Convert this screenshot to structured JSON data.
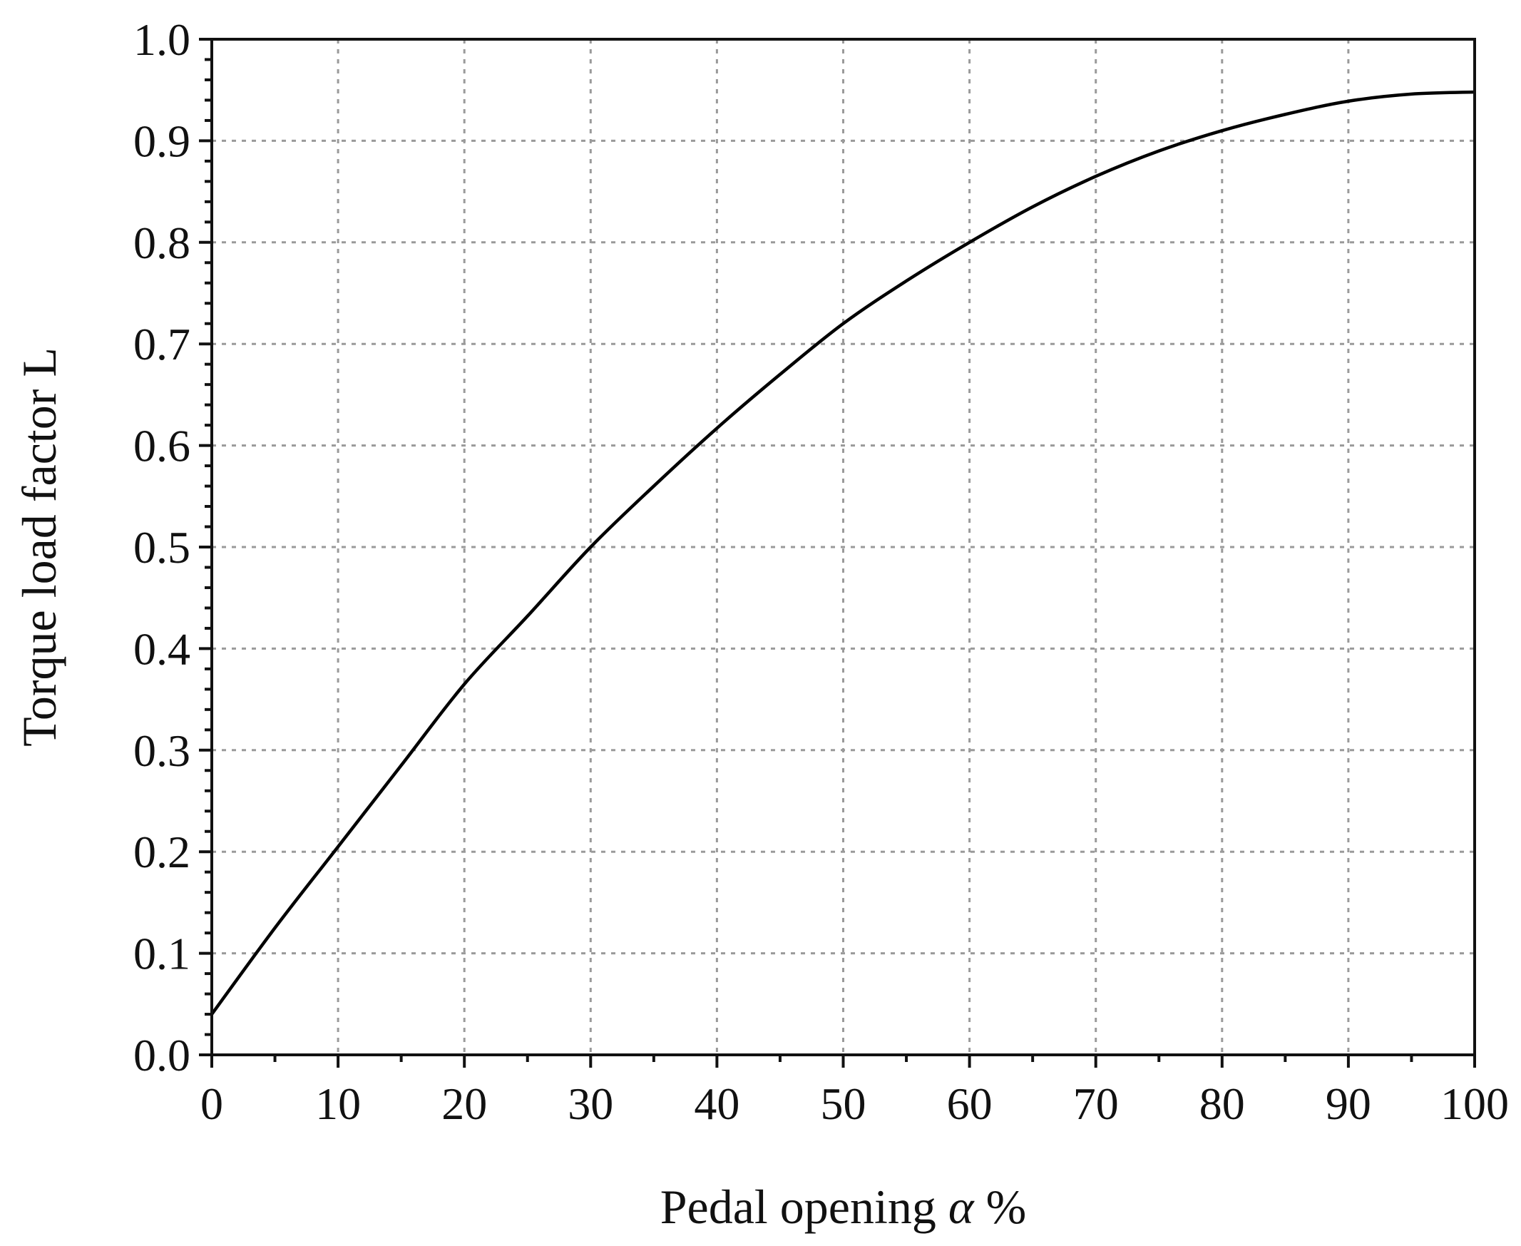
{
  "chart_data": {
    "type": "line",
    "title": "",
    "xlabel": "Pedal opening",
    "xlabel_symbol": "α",
    "xlabel_unit": "%",
    "ylabel": "Torque load factor L",
    "xlim": [
      0,
      100
    ],
    "ylim": [
      0,
      1.0
    ],
    "grid": true,
    "x_ticks": [
      "0",
      "10",
      "20",
      "30",
      "40",
      "50",
      "60",
      "70",
      "80",
      "90",
      "100"
    ],
    "y_ticks": [
      "0.0",
      "0.1",
      "0.2",
      "0.3",
      "0.4",
      "0.5",
      "0.6",
      "0.7",
      "0.8",
      "0.9",
      "1.0"
    ],
    "series": [
      {
        "color": "#000000",
        "x": [
          0,
          5,
          10,
          15,
          20,
          25,
          30,
          35,
          40,
          45,
          50,
          55,
          60,
          65,
          70,
          75,
          80,
          85,
          90,
          95,
          100
        ],
        "y": [
          0.04,
          0.125,
          0.205,
          0.285,
          0.365,
          0.432,
          0.5,
          0.56,
          0.617,
          0.67,
          0.72,
          0.762,
          0.8,
          0.835,
          0.865,
          0.89,
          0.91,
          0.926,
          0.939,
          0.946,
          0.948
        ]
      }
    ]
  }
}
